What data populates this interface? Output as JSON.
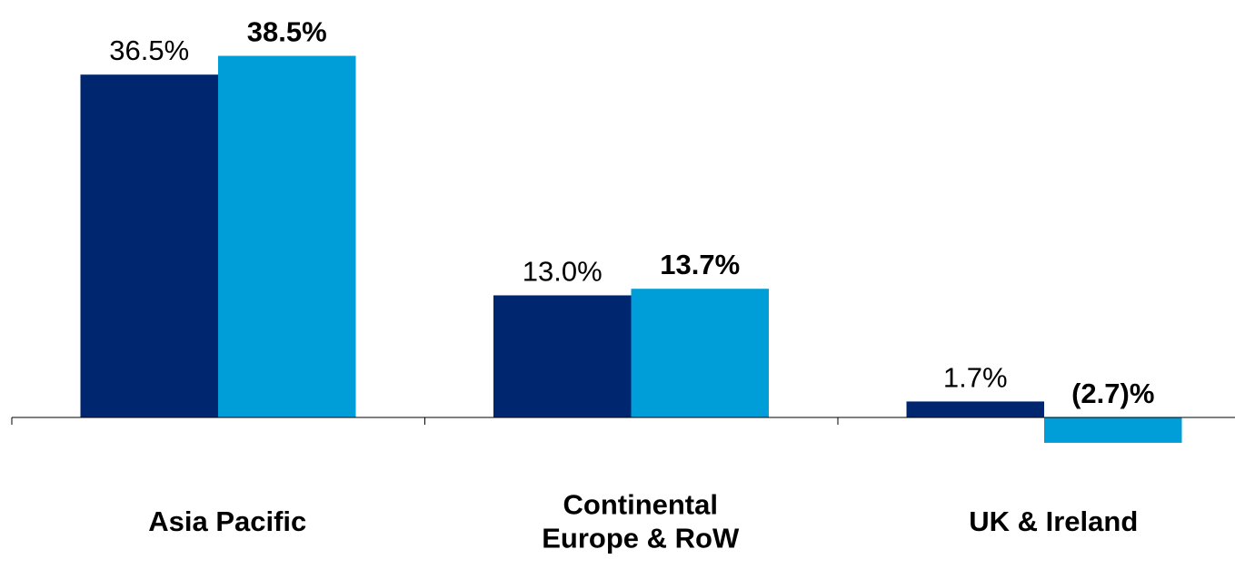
{
  "chart_data": {
    "type": "bar",
    "categories": [
      [
        "Asia Pacific"
      ],
      [
        "Continental",
        "Europe & RoW"
      ],
      [
        "UK & Ireland"
      ]
    ],
    "series": [
      {
        "values": [
          36.5,
          13.0,
          1.7
        ],
        "labels": [
          "36.5%",
          "13.0%",
          "1.7%"
        ],
        "color": "#002670",
        "label_weight": "normal"
      },
      {
        "values": [
          38.5,
          13.7,
          -2.7
        ],
        "labels": [
          "38.5%",
          "13.7%",
          "(2.7)%"
        ],
        "color": "#009ED8",
        "label_weight": "bold"
      }
    ],
    "title": "",
    "xlabel": "",
    "ylabel": "",
    "grid": false,
    "legend": "none",
    "axis_color": "#000000",
    "text_color": "#000000"
  }
}
